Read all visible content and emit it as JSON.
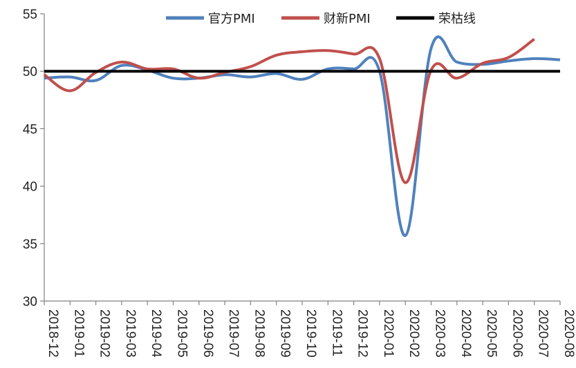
{
  "chart_data": {
    "type": "line",
    "title": "",
    "xlabel": "",
    "ylabel": "",
    "categories": [
      "2018-12",
      "2019-01",
      "2019-02",
      "2019-03",
      "2019-04",
      "2019-05",
      "2019-06",
      "2019-07",
      "2019-08",
      "2019-09",
      "2019-10",
      "2019-11",
      "2019-12",
      "2020-01",
      "2020-02",
      "2020-03",
      "2020-04",
      "2020-05",
      "2020-06",
      "2020-07",
      "2020-08"
    ],
    "ylim": [
      30,
      55
    ],
    "yticks": [
      "30",
      "35",
      "40",
      "45",
      "50",
      "55"
    ],
    "legend_position": "top",
    "grid": false,
    "series": [
      {
        "name": "官方PMI",
        "color": "#4f81bd",
        "values": [
          49.4,
          49.5,
          49.2,
          50.5,
          50.1,
          49.4,
          49.4,
          49.7,
          49.5,
          49.8,
          49.3,
          50.2,
          50.2,
          50.0,
          35.7,
          52.0,
          50.8,
          50.6,
          50.9,
          51.1,
          51.0
        ]
      },
      {
        "name": "财新PMI",
        "color": "#c0504d",
        "values": [
          49.7,
          48.3,
          49.9,
          50.8,
          50.2,
          50.2,
          49.4,
          49.9,
          50.4,
          51.4,
          51.7,
          51.8,
          51.5,
          51.1,
          40.3,
          50.1,
          49.4,
          50.7,
          51.2,
          52.8,
          null
        ]
      },
      {
        "name": "荣枯线",
        "color": "#000000",
        "values": [
          50,
          50,
          50,
          50,
          50,
          50,
          50,
          50,
          50,
          50,
          50,
          50,
          50,
          50,
          50,
          50,
          50,
          50,
          50,
          50,
          50
        ]
      }
    ]
  }
}
